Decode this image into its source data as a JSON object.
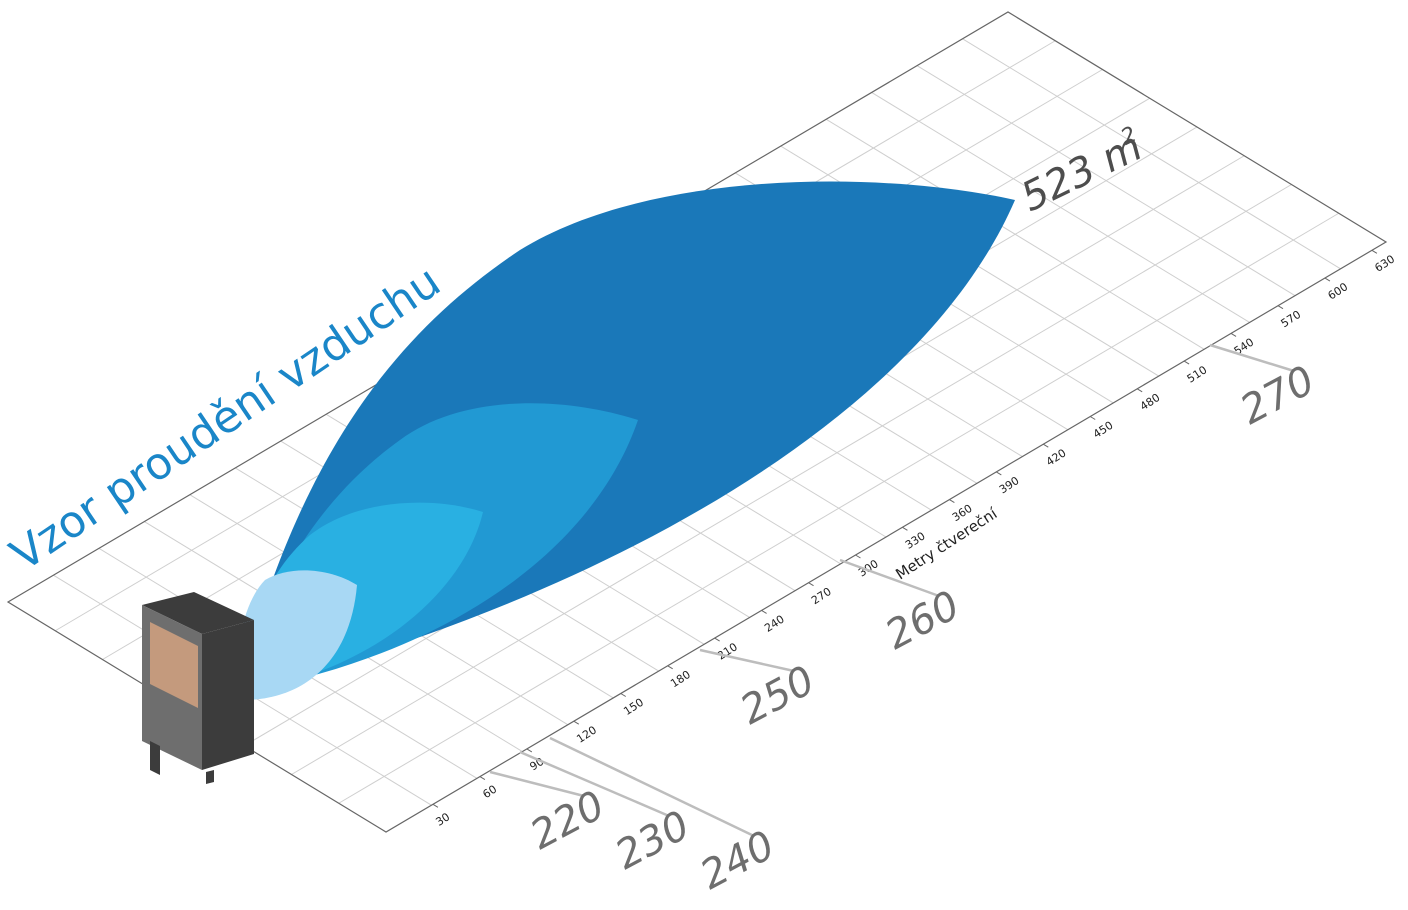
{
  "title": "Vzor proudění vzduchu",
  "axis_title": "Metry čtvereční",
  "axis_ticks": [
    "30",
    "60",
    "90",
    "120",
    "150",
    "180",
    "210",
    "240",
    "270",
    "300",
    "330",
    "360",
    "390",
    "420",
    "450",
    "480",
    "510",
    "540",
    "570",
    "600",
    "630"
  ],
  "area_value": "523 m",
  "area_exp": "2",
  "models": [
    {
      "label": "220",
      "tick": "60"
    },
    {
      "label": "230",
      "tick": "90"
    },
    {
      "label": "240",
      "tick": "90"
    },
    {
      "label": "250",
      "tick": "210"
    },
    {
      "label": "260",
      "tick": "300"
    },
    {
      "label": "270",
      "tick": "510"
    }
  ],
  "colors": {
    "title": "#1a86c8",
    "plume_large": "#1a78b9",
    "plume_medium": "#2199d3",
    "plume_small": "#29b0e2",
    "plume_tiny": "#a8d8f4",
    "grid": "#cfcfcf",
    "frame": "#666666",
    "leader": "#bdbdbd",
    "unit_dark": "#3c3c3c",
    "unit_side": "#6e6e6e",
    "unit_panel": "#c49a7d"
  }
}
